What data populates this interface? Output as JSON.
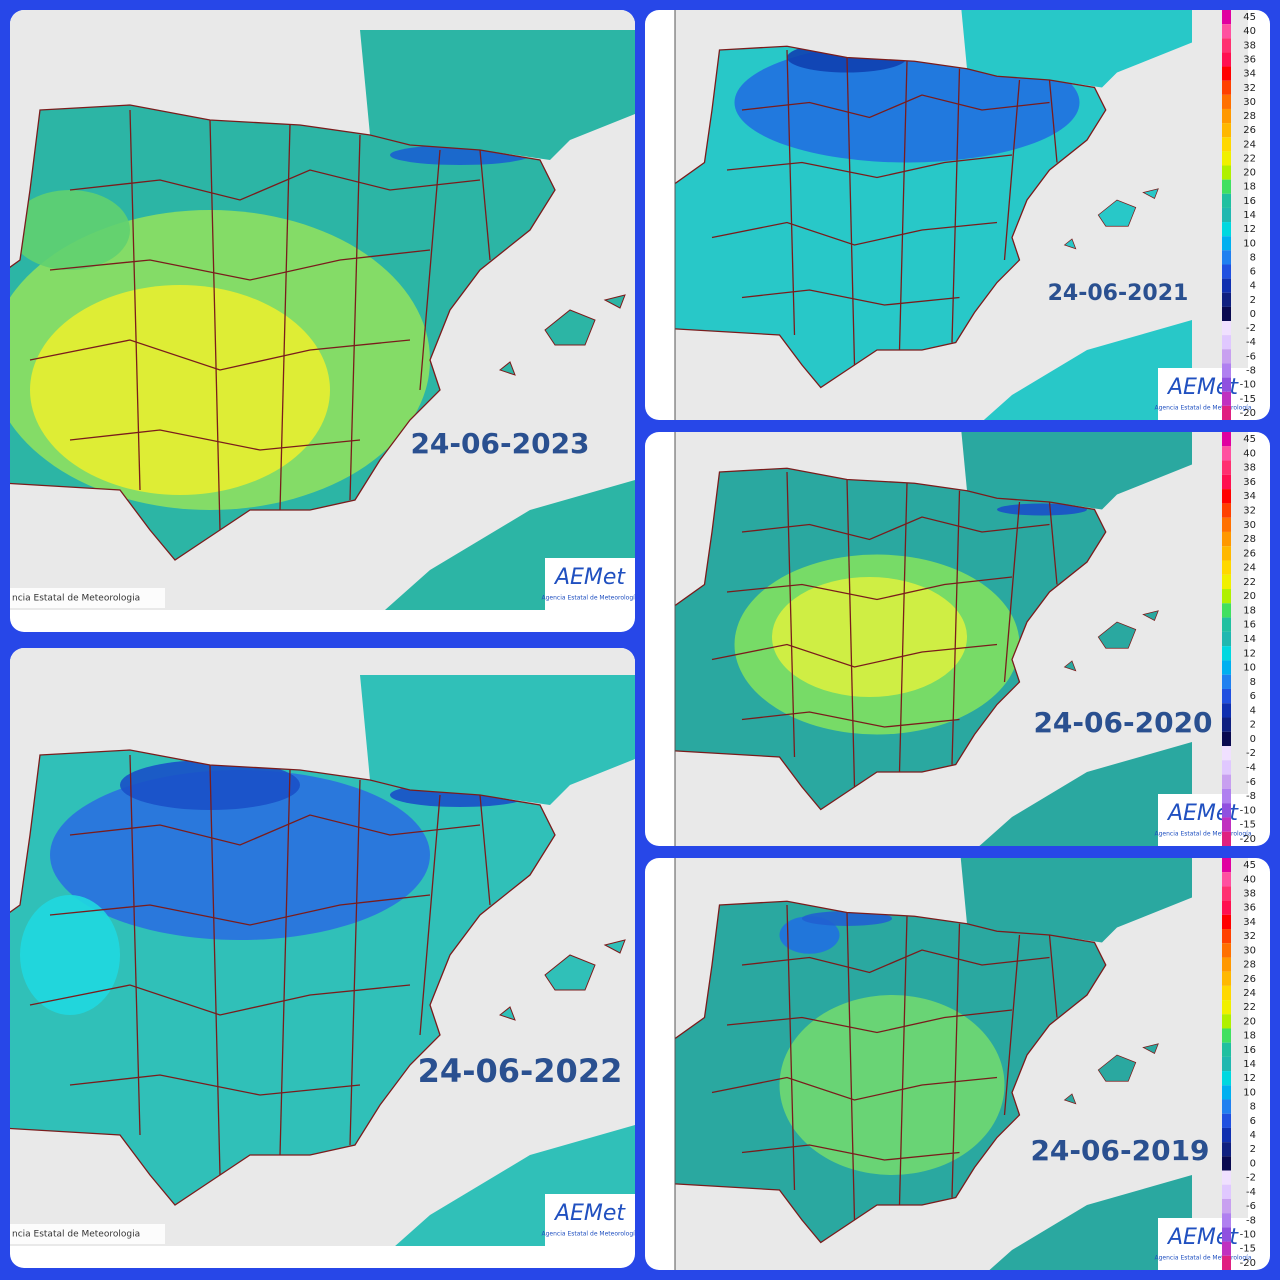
{
  "panels": [
    {
      "date": "24-06-2023"
    },
    {
      "date": "24-06-2022"
    },
    {
      "date": "24-06-2021"
    },
    {
      "date": "24-06-2020"
    },
    {
      "date": "24-06-2019"
    }
  ],
  "legend": {
    "labels": [
      45,
      40,
      38,
      36,
      34,
      32,
      30,
      28,
      26,
      24,
      22,
      20,
      18,
      16,
      14,
      12,
      10,
      8,
      6,
      4,
      2,
      0,
      -2,
      -4,
      -6,
      -8,
      -10,
      -15,
      -20
    ],
    "colors": [
      "#e000a0",
      "#ff50a0",
      "#ff3070",
      "#ff1050",
      "#ff0000",
      "#ff4000",
      "#ff7000",
      "#ff9800",
      "#ffb800",
      "#ffd800",
      "#f0f000",
      "#b0f000",
      "#40e060",
      "#20c0a0",
      "#20b8b0",
      "#00d8e0",
      "#00b0f0",
      "#2080f0",
      "#2050e0",
      "#1030b0",
      "#102080",
      "#0a0a50",
      "#f0e0ff",
      "#e0c8ff",
      "#c8a0f0",
      "#b080f0",
      "#9050e0",
      "#c030c0",
      "#e02080"
    ]
  },
  "credit": "ncia Estatal de Meteorologia",
  "logo": "AEMet",
  "logo_subtitle": "Agencia Estatal de Meteorología"
}
